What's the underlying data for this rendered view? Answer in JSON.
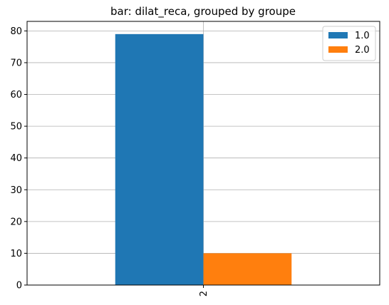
{
  "chart_data": {
    "type": "bar",
    "title": "bar: dilat_reca, grouped by groupe",
    "xlabel": "",
    "ylabel": "",
    "categories": [
      "2"
    ],
    "series": [
      {
        "name": "1.0",
        "values": [
          79
        ],
        "color": "#1f77b4"
      },
      {
        "name": "2.0",
        "values": [
          10
        ],
        "color": "#ff7f0e"
      }
    ],
    "ylim": [
      0,
      83
    ],
    "yticks": [
      0,
      10,
      20,
      30,
      40,
      50,
      60,
      70,
      80
    ],
    "grid": true,
    "legend_position": "top-right"
  }
}
